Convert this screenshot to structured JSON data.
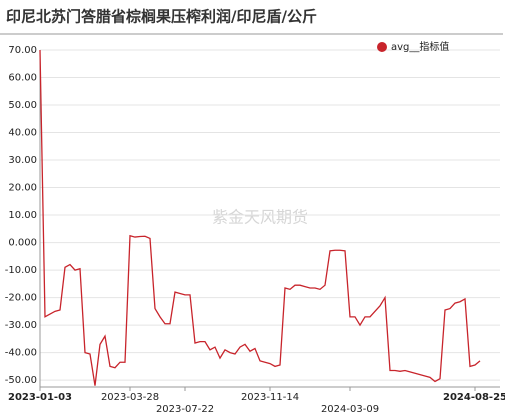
{
  "chart_data": {
    "type": "line",
    "title": "印尼北苏门答腊省棕榈果压榨利润/印尼盾/公斤",
    "annotation": "紫金天风期货",
    "series": [
      {
        "name": "avg__指标值",
        "color": "#c8242b",
        "values": [
          70,
          -27,
          -26,
          -25,
          -24.5,
          -9,
          -8,
          -10,
          -9.5,
          -40,
          -40.5,
          -52,
          -37,
          -34,
          -45,
          -45.5,
          -43.5,
          -43.5,
          2.5,
          2,
          2.2,
          2.3,
          1.5,
          -24,
          -27,
          -29.5,
          -29.5,
          -18,
          -18.5,
          -19,
          -19,
          -36.5,
          -36,
          -36,
          -39,
          -38,
          -42,
          -39,
          -40,
          -40.5,
          -38,
          -37,
          -39.5,
          -38.5,
          -43,
          -43.5,
          -44,
          -45,
          -44.5,
          -16.5,
          -17,
          -15.5,
          -15.5,
          -16,
          -16.5,
          -16.5,
          -17,
          -15.5,
          -3,
          -2.8,
          -2.8,
          -3,
          -27,
          -27,
          -30,
          -27,
          -27,
          -25,
          -23,
          -20,
          -46.5,
          -46.5,
          -46.8,
          -46.5,
          -47,
          -47.5,
          -48,
          -48.5,
          -49,
          -50.5,
          -49.5,
          -24.5,
          -24,
          -22,
          -21.5,
          -20.5,
          -45,
          -44.5,
          -43
        ]
      }
    ],
    "xlim": [
      0,
      88
    ],
    "xticks": [
      {
        "value": 0,
        "label": "2023-01-03"
      },
      {
        "value": 18,
        "label": "2023-03-28"
      },
      {
        "value": 29,
        "label": "2023-07-22"
      },
      {
        "value": 46,
        "label": "2023-11-14"
      },
      {
        "value": 62,
        "label": "2024-03-09"
      },
      {
        "value": 87,
        "label": "2024-08-25"
      }
    ],
    "ylim": [
      -52.5,
      70
    ],
    "yticks": [
      {
        "value": -50,
        "label": "-50.00"
      },
      {
        "value": -40,
        "label": "-40.00"
      },
      {
        "value": -30,
        "label": "-30.00"
      },
      {
        "value": -20,
        "label": "-20.00"
      },
      {
        "value": -10,
        "label": "-10.00"
      },
      {
        "value": 0,
        "label": "0.000"
      },
      {
        "value": 10,
        "label": "10.00"
      },
      {
        "value": 20,
        "label": "20.00"
      },
      {
        "value": 30,
        "label": "30.00"
      },
      {
        "value": 40,
        "label": "40.00"
      },
      {
        "value": 50,
        "label": "50.00"
      },
      {
        "value": 60,
        "label": "60.00"
      },
      {
        "value": 70,
        "label": "70.00"
      }
    ],
    "grid": true
  }
}
